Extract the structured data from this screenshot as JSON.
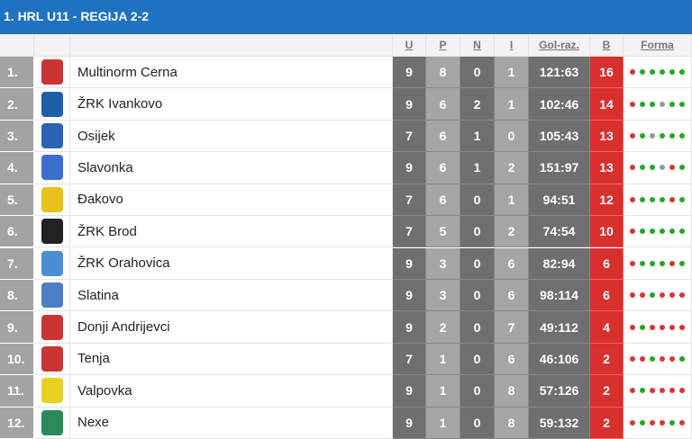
{
  "header": {
    "title": "1. HRL U11 - REGIJA 2-2"
  },
  "table": {
    "columns": [
      "U",
      "P",
      "N",
      "I",
      "Gol-raz.",
      "B",
      "Forma"
    ],
    "rows": [
      [
        "1.",
        "Multinorm Cerna",
        9,
        8,
        0,
        1,
        "121:63",
        16
      ],
      [
        "2.",
        "ŽRK Ivankovo",
        9,
        6,
        2,
        1,
        "102:46",
        14
      ],
      [
        "3.",
        "Osijek",
        7,
        6,
        1,
        0,
        "105:43",
        13
      ],
      [
        "4.",
        "Slavonka",
        9,
        6,
        1,
        2,
        "151:97",
        13
      ],
      [
        "5.",
        "Đakovo",
        7,
        6,
        0,
        1,
        "94:51",
        12
      ],
      [
        "6.",
        "ŽRK Brod",
        7,
        5,
        0,
        2,
        "74:54",
        10
      ],
      [
        "7.",
        "ŽRK Orahovica",
        9,
        3,
        0,
        6,
        "82:94",
        6
      ],
      [
        "8.",
        "Slatina",
        9,
        3,
        0,
        6,
        "98:114",
        6
      ],
      [
        "9.",
        "Donji Andrijevci",
        9,
        2,
        0,
        7,
        "49:112",
        4
      ],
      [
        "10.",
        "Tenja",
        7,
        1,
        0,
        6,
        "46:106",
        2
      ],
      [
        "11.",
        "Valpovka",
        9,
        1,
        0,
        8,
        "57:126",
        2
      ],
      [
        "12.",
        "Nexe",
        9,
        1,
        0,
        8,
        "59:132",
        2
      ]
    ],
    "form_colors": [
      [
        "#d33",
        "#2a2",
        "#2a2",
        "#2a2",
        "#2a2",
        "#2a2"
      ],
      [
        "#d33",
        "#2a2",
        "#2a2",
        "#999",
        "#2a2",
        "#2a2"
      ],
      [
        "#d33",
        "#2a2",
        "#999",
        "#2a2",
        "#2a2",
        "#2a2"
      ],
      [
        "#d33",
        "#2a2",
        "#2a2",
        "#999",
        "#d33",
        "#2a2"
      ],
      [
        "#d33",
        "#2a2",
        "#2a2",
        "#2a2",
        "#d33",
        "#2a2"
      ],
      [
        "#d33",
        "#2a2",
        "#2a2",
        "#2a2",
        "#2a2",
        "#2a2"
      ],
      [
        "#d33",
        "#2a2",
        "#2a2",
        "#2a2",
        "#d33",
        "#2a2"
      ],
      [
        "#d33",
        "#d33",
        "#2a2",
        "#d33",
        "#d33",
        "#d33"
      ],
      [
        "#d33",
        "#2a2",
        "#d33",
        "#d33",
        "#d33",
        "#d33"
      ],
      [
        "#d33",
        "#d33",
        "#2a2",
        "#d33",
        "#d33",
        "#2a2"
      ],
      [
        "#d33",
        "#2a2",
        "#d33",
        "#d33",
        "#d33",
        "#d33"
      ],
      [
        "#d33",
        "#2a2",
        "#d33",
        "#d33",
        "#2a2",
        "#d33"
      ]
    ]
  }
}
